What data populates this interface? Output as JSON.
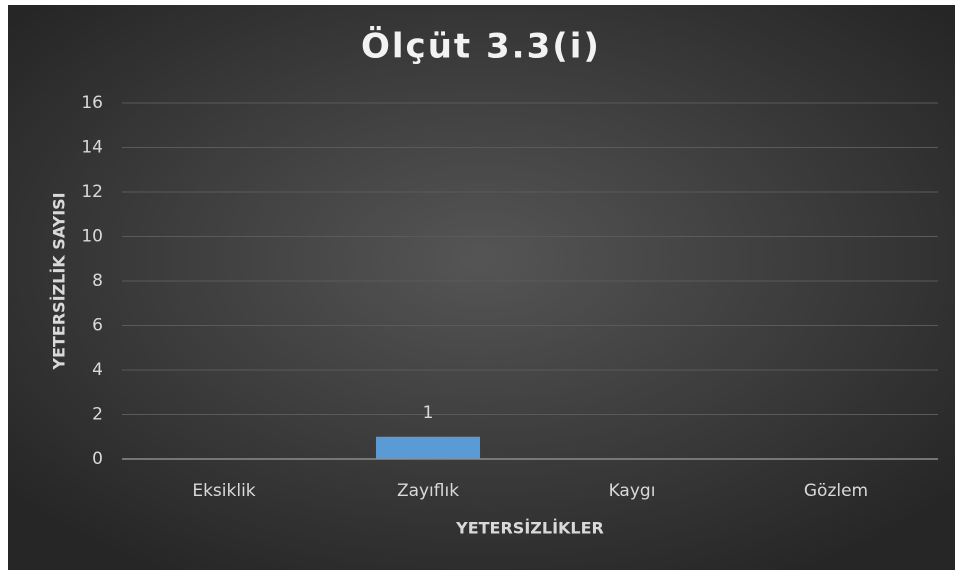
{
  "chart_data": {
    "type": "bar",
    "title": "Ölçüt 3.3(i)",
    "x_label": "YETERSİZLİKLER",
    "y_label": "YETERSİZLİK SAYISI",
    "categories": [
      "Eksiklik",
      "Zayıflık",
      "Kaygı",
      "Gözlem"
    ],
    "values": [
      0,
      1,
      0,
      0
    ],
    "color": "#5b9bd5",
    "ylim": [
      0,
      16
    ],
    "yticks": [
      0,
      2,
      4,
      6,
      8,
      10,
      12,
      14,
      16
    ],
    "grid": true
  }
}
